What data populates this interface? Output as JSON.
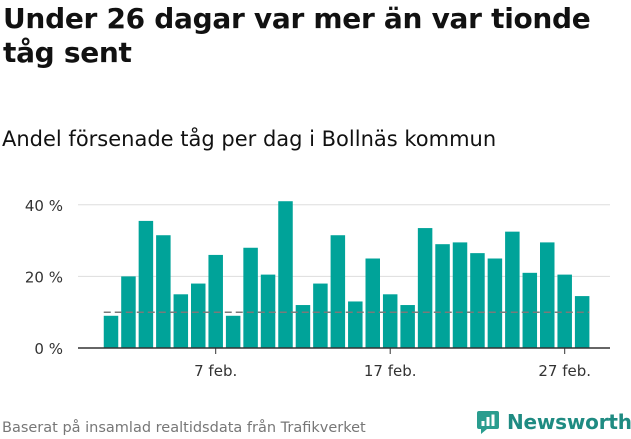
{
  "title": "Under 26 dagar var mer än var tionde tåg sent",
  "subtitle": "Andel försenade tåg per dag i Bollnäs kommun",
  "footer": "Baserat på insamlad realtidsdata från Trafikverket",
  "brand": "Newsworthy",
  "colors": {
    "bar": "#00a399",
    "grid": "#dddddd",
    "reference_line": "#7a7a7a",
    "brand": "#1f8b82"
  },
  "chart_data": {
    "type": "bar",
    "unit": "%",
    "categories": [
      "1 feb.",
      "2 feb.",
      "3 feb.",
      "4 feb.",
      "5 feb.",
      "6 feb.",
      "7 feb.",
      "8 feb.",
      "9 feb.",
      "10 feb.",
      "11 feb.",
      "12 feb.",
      "13 feb.",
      "14 feb.",
      "15 feb.",
      "16 feb.",
      "17 feb.",
      "18 feb.",
      "19 feb.",
      "20 feb.",
      "21 feb.",
      "22 feb.",
      "23 feb.",
      "24 feb.",
      "25 feb.",
      "26 feb.",
      "27 feb.",
      "28 feb."
    ],
    "values": [
      9,
      20,
      35.5,
      31.5,
      15,
      18,
      26,
      9,
      28,
      20.5,
      41,
      12,
      18,
      31.5,
      13,
      25,
      15,
      12,
      33.5,
      29,
      29.5,
      26.5,
      25,
      32.5,
      21,
      29.5,
      20.5,
      14.5
    ],
    "x_tick_labels": [
      {
        "label": "7 feb.",
        "category_index": 6
      },
      {
        "label": "17 feb.",
        "category_index": 16
      },
      {
        "label": "27 feb.",
        "category_index": 26
      }
    ],
    "y_ticks": [
      {
        "value": 0,
        "label": "0 %"
      },
      {
        "value": 20,
        "label": "20 %"
      },
      {
        "value": 40,
        "label": "40 %"
      }
    ],
    "ylim": [
      0,
      45
    ],
    "reference_line": 10,
    "grid": true
  }
}
